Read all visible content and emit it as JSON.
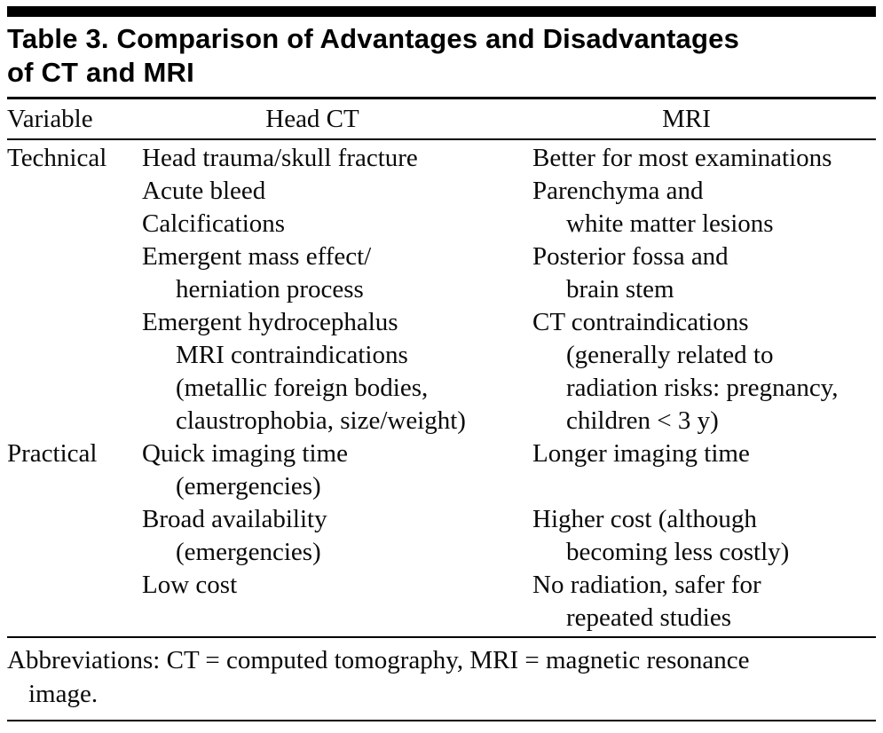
{
  "title": {
    "line1": "Table 3. Comparison of Advantages and Disadvantages",
    "line2": "of CT and MRI"
  },
  "columns": [
    "Variable",
    "Head CT",
    "MRI"
  ],
  "sections": [
    {
      "label": "Technical",
      "rows": [
        {
          "ct": "Head trauma/skull fracture",
          "mri": "Better for most examinations"
        },
        {
          "ct": "Acute bleed",
          "mri": "Parenchyma and"
        },
        {
          "ct": "Calcifications",
          "mri": "white matter lesions"
        },
        {
          "ct": "Emergent mass effect/",
          "mri": "Posterior fossa and"
        },
        {
          "ct": "herniation process",
          "mri": "brain stem"
        },
        {
          "ct": "Emergent hydrocephalus",
          "mri": "CT contraindications"
        },
        {
          "ct": "MRI contraindications",
          "mri": "(generally related to"
        },
        {
          "ct": "(metallic foreign bodies,",
          "mri": "radiation risks: pregnancy,"
        },
        {
          "ct": "claustrophobia, size/weight)",
          "mri": "children < 3 y)"
        }
      ]
    },
    {
      "label": "Practical",
      "rows": [
        {
          "ct": "Quick imaging time",
          "mri": "Longer imaging time"
        },
        {
          "ct": "(emergencies)",
          "mri": ""
        },
        {
          "ct": "Broad availability",
          "mri": "Higher cost (although"
        },
        {
          "ct": "(emergencies)",
          "mri": "becoming less costly)"
        },
        {
          "ct": "Low cost",
          "mri": "No radiation, safer for"
        },
        {
          "ct": "",
          "mri": "repeated studies"
        }
      ]
    }
  ],
  "footnote": {
    "line1": "Abbreviations: CT = computed tomography, MRI = magnetic resonance",
    "line2": "image."
  },
  "colors": {
    "rule": "#000000",
    "text": "#0a0a0a",
    "background": "#ffffff"
  }
}
